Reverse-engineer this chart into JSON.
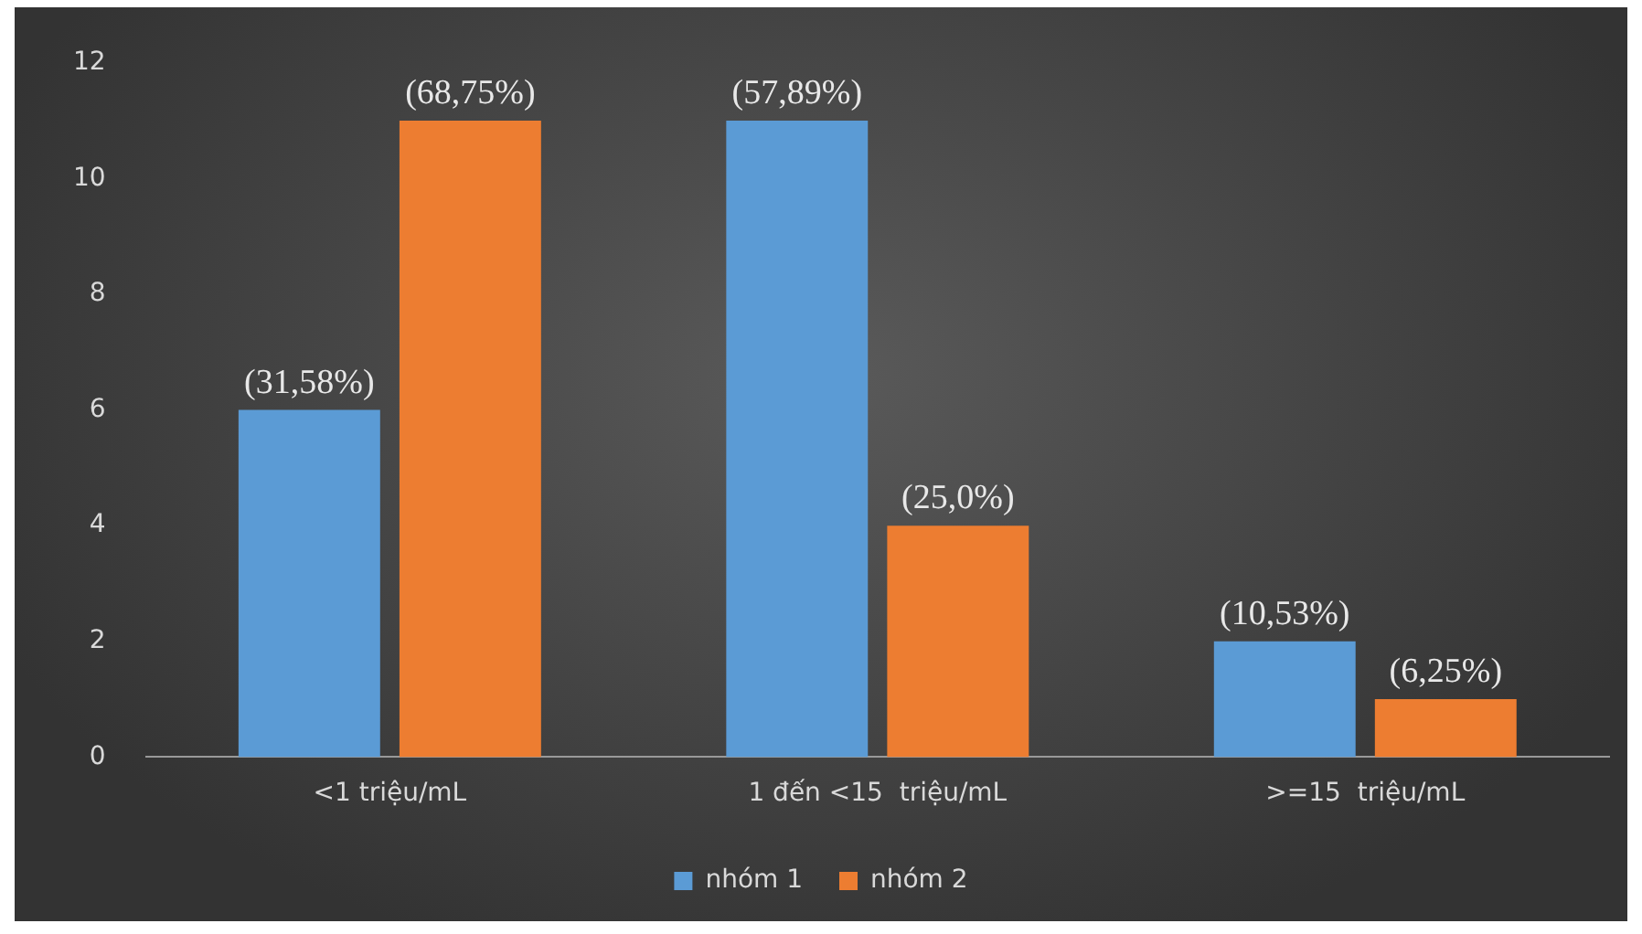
{
  "chart_data": {
    "type": "bar",
    "categories": [
      "<1 triệu/mL",
      "1 đến <15  triệu/mL",
      ">=15  triệu/mL"
    ],
    "series": [
      {
        "name": "nhóm 1",
        "color": "#5b9bd5",
        "values": [
          6,
          11,
          2
        ]
      },
      {
        "name": "nhóm 2",
        "color": "#ed7d31",
        "values": [
          11,
          4,
          1
        ]
      }
    ],
    "annotations": [
      "(31,58%)",
      "(68,75%)",
      "(57,89%)",
      "(25,0%)",
      "(10,53%)",
      "(6,25%)"
    ],
    "ylim": [
      0,
      12
    ],
    "yticks": [
      0,
      2,
      4,
      6,
      8,
      10,
      12
    ],
    "grid": false,
    "legend": "bottom"
  }
}
